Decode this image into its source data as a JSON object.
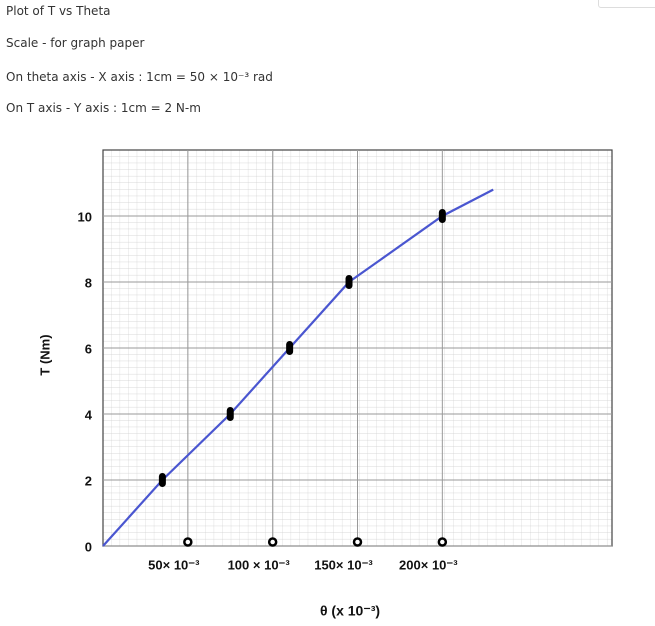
{
  "header": {
    "title": "Plot of T vs Theta",
    "lines": [
      "Scale - for graph paper",
      "On theta axis - X axis : 1cm = 50 ⨯ 10⁻³ rad",
      "On T axis - Y axis : 1cm = 2 N-m"
    ]
  },
  "chart_data": {
    "type": "scatter",
    "xlabel": "θ (x 10⁻³)",
    "ylabel": "T (Nm)",
    "xlim": [
      0,
      300
    ],
    "ylim": [
      0,
      12
    ],
    "xticks": [
      {
        "value": 50,
        "label": "50× 10⁻³"
      },
      {
        "value": 100,
        "label": "100 × 10⁻³"
      },
      {
        "value": 150,
        "label": "150× 10⁻³"
      },
      {
        "value": 200,
        "label": "200× 10⁻³"
      }
    ],
    "yticks": [
      0,
      2,
      4,
      6,
      8,
      10
    ],
    "grid": true,
    "series": [
      {
        "style": "line",
        "color": "#4a56d0",
        "x": [
          0,
          35,
          75,
          110,
          145,
          200,
          230
        ],
        "values": [
          0,
          2,
          4,
          6,
          8,
          10,
          10.8
        ]
      },
      {
        "style": "marker",
        "color": "#000000",
        "x": [
          35,
          75,
          110,
          145,
          200
        ],
        "values": [
          2,
          4,
          6,
          8,
          10
        ]
      }
    ]
  }
}
